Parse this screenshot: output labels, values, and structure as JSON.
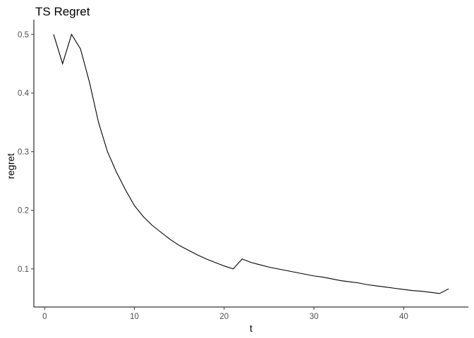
{
  "chart_data": {
    "type": "line",
    "title": "TS Regret",
    "xlabel": "t",
    "ylabel": "regret",
    "xlim": [
      -1.2,
      47.2
    ],
    "ylim": [
      0.035,
      0.525
    ],
    "xticks": [
      0,
      10,
      20,
      30,
      40
    ],
    "yticks": [
      0.1,
      0.2,
      0.3,
      0.4,
      0.5
    ],
    "xtick_labels": [
      "0",
      "10",
      "20",
      "30",
      "40"
    ],
    "ytick_labels": [
      "0.1",
      "0.2",
      "0.3",
      "0.4",
      "0.5"
    ],
    "grid": false,
    "legend": "none",
    "line_color": "#000000",
    "series": [
      {
        "x": [
          1,
          2,
          3,
          4,
          5,
          6,
          7,
          8,
          9,
          10,
          11,
          12,
          13,
          14,
          15,
          16,
          17,
          18,
          19,
          20,
          21,
          22,
          23,
          24,
          25,
          26,
          27,
          28,
          29,
          30,
          31,
          32,
          33,
          34,
          35,
          36,
          37,
          38,
          39,
          40,
          41,
          42,
          43,
          44,
          45
        ],
        "values": [
          0.5,
          0.45,
          0.5,
          0.475,
          0.418,
          0.35,
          0.3,
          0.265,
          0.235,
          0.208,
          0.189,
          0.174,
          0.162,
          0.15,
          0.14,
          0.132,
          0.124,
          0.117,
          0.111,
          0.105,
          0.1,
          0.117,
          0.111,
          0.107,
          0.103,
          0.1,
          0.097,
          0.094,
          0.091,
          0.088,
          0.086,
          0.083,
          0.08,
          0.078,
          0.076,
          0.073,
          0.071,
          0.069,
          0.067,
          0.065,
          0.063,
          0.062,
          0.06,
          0.058,
          0.066
        ]
      }
    ]
  }
}
